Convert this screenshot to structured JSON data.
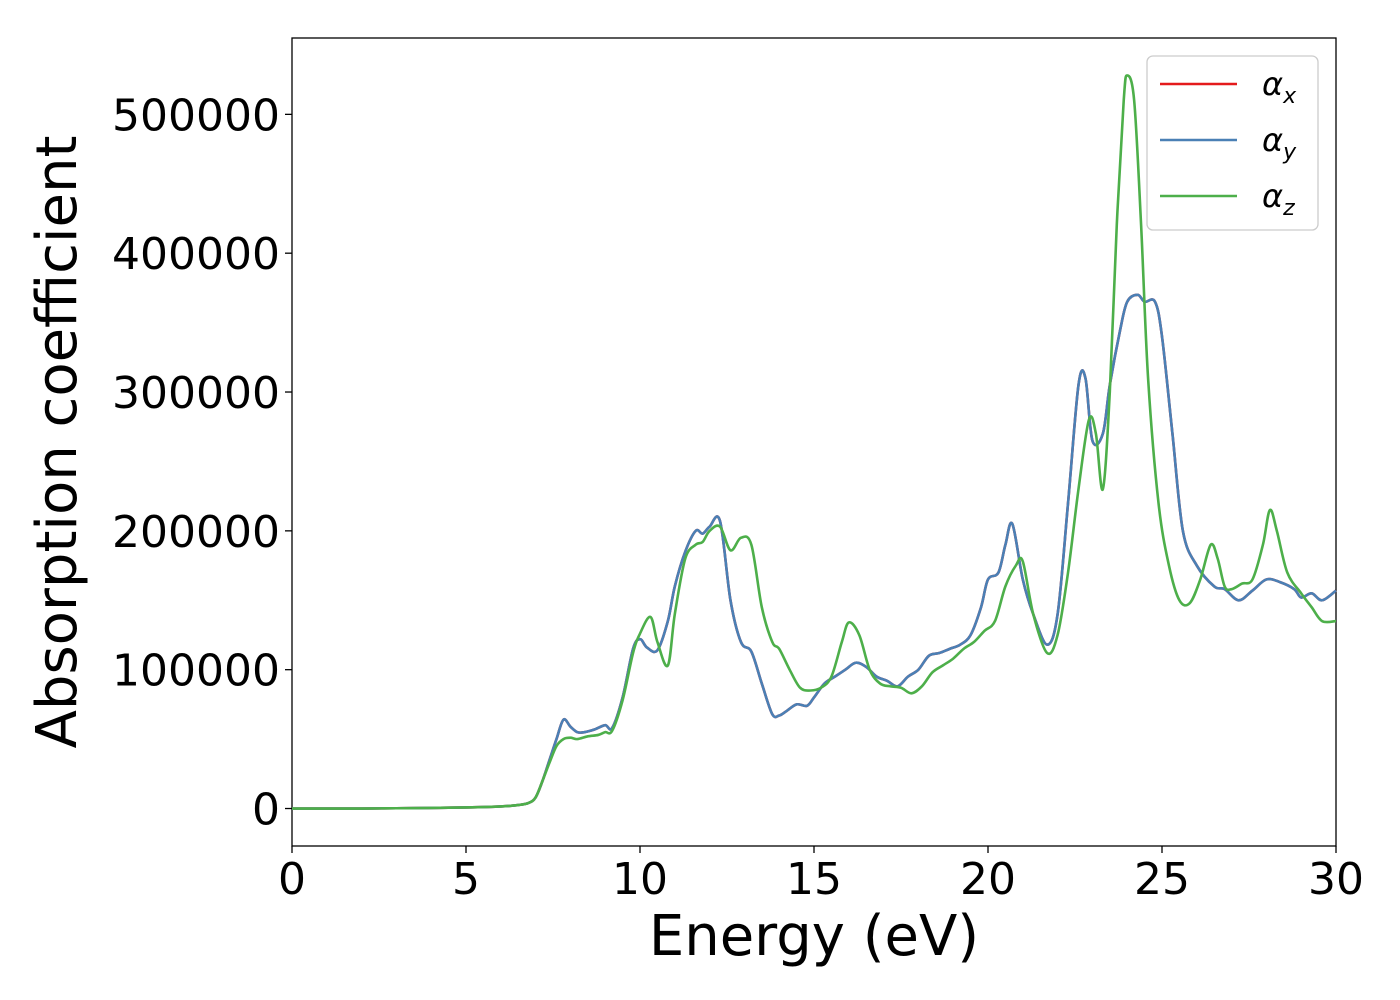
{
  "chart_data": {
    "type": "line",
    "xlabel": "Energy (eV)",
    "ylabel": "Absorption coefficient",
    "xlim": [
      0,
      30
    ],
    "ylim": [
      -27000,
      555000
    ],
    "xticks": [
      0,
      5,
      10,
      15,
      20,
      25,
      30
    ],
    "yticks": [
      0,
      100000,
      200000,
      300000,
      400000,
      500000
    ],
    "grid": false,
    "legend_position": "top-right",
    "series": [
      {
        "name": "αx",
        "base": "α",
        "sub": "x",
        "color": "#e41a1c",
        "x": [
          0,
          1,
          2,
          3,
          4,
          5,
          6,
          6.5,
          6.8,
          7.0,
          7.2,
          7.4,
          7.6,
          7.8,
          8.0,
          8.2,
          8.4,
          8.7,
          9.0,
          9.2,
          9.5,
          9.8,
          10.0,
          10.2,
          10.5,
          10.8,
          11.0,
          11.3,
          11.6,
          11.8,
          12.0,
          12.3,
          12.6,
          12.9,
          13.2,
          13.5,
          13.8,
          14.0,
          14.2,
          14.5,
          14.8,
          15.0,
          15.3,
          15.6,
          15.9,
          16.2,
          16.5,
          16.8,
          17.1,
          17.4,
          17.7,
          18.0,
          18.3,
          18.6,
          18.9,
          19.2,
          19.5,
          19.8,
          20.0,
          20.3,
          20.5,
          20.7,
          21.0,
          21.3,
          21.7,
          22.0,
          22.3,
          22.6,
          22.8,
          23.0,
          23.3,
          23.5,
          23.8,
          24.0,
          24.3,
          24.5,
          24.8,
          25.0,
          25.3,
          25.6,
          26.0,
          26.5,
          26.8,
          27.2,
          27.6,
          28.0,
          28.4,
          28.8,
          29.0,
          29.3,
          29.6,
          30.0
        ],
        "y": [
          0,
          0,
          0,
          200,
          400,
          800,
          1500,
          2500,
          4000,
          8000,
          20000,
          35000,
          50000,
          64000,
          59000,
          55000,
          55000,
          57000,
          60000,
          58000,
          80000,
          115000,
          122000,
          116000,
          114000,
          135000,
          160000,
          185000,
          200000,
          198000,
          203000,
          207000,
          150000,
          120000,
          113000,
          90000,
          68000,
          67000,
          70000,
          75000,
          74000,
          80000,
          90000,
          95000,
          100000,
          105000,
          102000,
          95000,
          92000,
          88000,
          95000,
          100000,
          110000,
          112000,
          115000,
          118000,
          125000,
          145000,
          165000,
          170000,
          190000,
          205000,
          165000,
          140000,
          118000,
          140000,
          220000,
          305000,
          310000,
          265000,
          270000,
          305000,
          345000,
          365000,
          370000,
          365000,
          365000,
          340000,
          270000,
          200000,
          175000,
          160000,
          158000,
          150000,
          157000,
          165000,
          163000,
          158000,
          152000,
          155000,
          150000,
          157000
        ]
      },
      {
        "name": "αy",
        "base": "α",
        "sub": "y",
        "color": "#4a80b5",
        "x": [
          0,
          1,
          2,
          3,
          4,
          5,
          6,
          6.5,
          6.8,
          7.0,
          7.2,
          7.4,
          7.6,
          7.8,
          8.0,
          8.2,
          8.4,
          8.7,
          9.0,
          9.2,
          9.5,
          9.8,
          10.0,
          10.2,
          10.5,
          10.8,
          11.0,
          11.3,
          11.6,
          11.8,
          12.0,
          12.3,
          12.6,
          12.9,
          13.2,
          13.5,
          13.8,
          14.0,
          14.2,
          14.5,
          14.8,
          15.0,
          15.3,
          15.6,
          15.9,
          16.2,
          16.5,
          16.8,
          17.1,
          17.4,
          17.7,
          18.0,
          18.3,
          18.6,
          18.9,
          19.2,
          19.5,
          19.8,
          20.0,
          20.3,
          20.5,
          20.7,
          21.0,
          21.3,
          21.7,
          22.0,
          22.3,
          22.6,
          22.8,
          23.0,
          23.3,
          23.5,
          23.8,
          24.0,
          24.3,
          24.5,
          24.8,
          25.0,
          25.3,
          25.6,
          26.0,
          26.5,
          26.8,
          27.2,
          27.6,
          28.0,
          28.4,
          28.8,
          29.0,
          29.3,
          29.6,
          30.0
        ],
        "y": [
          0,
          0,
          0,
          200,
          400,
          800,
          1500,
          2500,
          4000,
          8000,
          20000,
          35000,
          50000,
          64000,
          59000,
          55000,
          55000,
          57000,
          60000,
          58000,
          80000,
          115000,
          122000,
          116000,
          114000,
          135000,
          160000,
          185000,
          200000,
          198000,
          203000,
          207000,
          150000,
          120000,
          113000,
          90000,
          68000,
          67000,
          70000,
          75000,
          74000,
          80000,
          90000,
          95000,
          100000,
          105000,
          102000,
          95000,
          92000,
          88000,
          95000,
          100000,
          110000,
          112000,
          115000,
          118000,
          125000,
          145000,
          165000,
          170000,
          190000,
          205000,
          165000,
          140000,
          118000,
          140000,
          220000,
          305000,
          310000,
          265000,
          270000,
          305000,
          345000,
          365000,
          370000,
          365000,
          365000,
          340000,
          270000,
          200000,
          175000,
          160000,
          158000,
          150000,
          157000,
          165000,
          163000,
          158000,
          152000,
          155000,
          150000,
          157000
        ]
      },
      {
        "name": "αz",
        "base": "α",
        "sub": "z",
        "color": "#4daf4a",
        "x": [
          0,
          1,
          2,
          3,
          4,
          5,
          6,
          6.5,
          6.8,
          7.0,
          7.2,
          7.4,
          7.6,
          7.8,
          8.0,
          8.2,
          8.5,
          8.8,
          9.0,
          9.2,
          9.5,
          9.8,
          10.0,
          10.3,
          10.5,
          10.8,
          11.0,
          11.3,
          11.6,
          11.8,
          12.0,
          12.3,
          12.6,
          12.9,
          13.2,
          13.5,
          13.8,
          14.0,
          14.3,
          14.6,
          14.9,
          15.2,
          15.5,
          15.8,
          16.0,
          16.3,
          16.6,
          16.9,
          17.2,
          17.5,
          17.8,
          18.1,
          18.4,
          18.7,
          19.0,
          19.3,
          19.6,
          19.9,
          20.2,
          20.5,
          20.8,
          21.0,
          21.3,
          21.7,
          22.0,
          22.3,
          22.6,
          22.9,
          23.1,
          23.3,
          23.5,
          23.7,
          23.9,
          24.0,
          24.2,
          24.4,
          24.6,
          24.9,
          25.2,
          25.5,
          25.8,
          26.1,
          26.4,
          26.6,
          26.8,
          27.0,
          27.3,
          27.6,
          27.9,
          28.1,
          28.3,
          28.6,
          29.0,
          29.3,
          29.6,
          30.0
        ],
        "y": [
          0,
          0,
          0,
          200,
          400,
          800,
          1500,
          2500,
          4000,
          8000,
          20000,
          33000,
          45000,
          50000,
          51000,
          50000,
          52000,
          53000,
          55000,
          56000,
          78000,
          112000,
          126000,
          138000,
          120000,
          103000,
          140000,
          180000,
          190000,
          192000,
          200000,
          203000,
          186000,
          195000,
          190000,
          145000,
          120000,
          115000,
          100000,
          87000,
          85000,
          87000,
          95000,
          120000,
          134000,
          125000,
          100000,
          90000,
          88000,
          87000,
          83000,
          88000,
          98000,
          103000,
          108000,
          115000,
          120000,
          128000,
          135000,
          160000,
          175000,
          178000,
          140000,
          112000,
          125000,
          170000,
          230000,
          280000,
          270000,
          230000,
          300000,
          420000,
          510000,
          528000,
          510000,
          420000,
          310000,
          220000,
          175000,
          150000,
          148000,
          165000,
          190000,
          180000,
          160000,
          158000,
          162000,
          165000,
          190000,
          215000,
          200000,
          170000,
          155000,
          145000,
          135000,
          135000
        ]
      }
    ]
  }
}
